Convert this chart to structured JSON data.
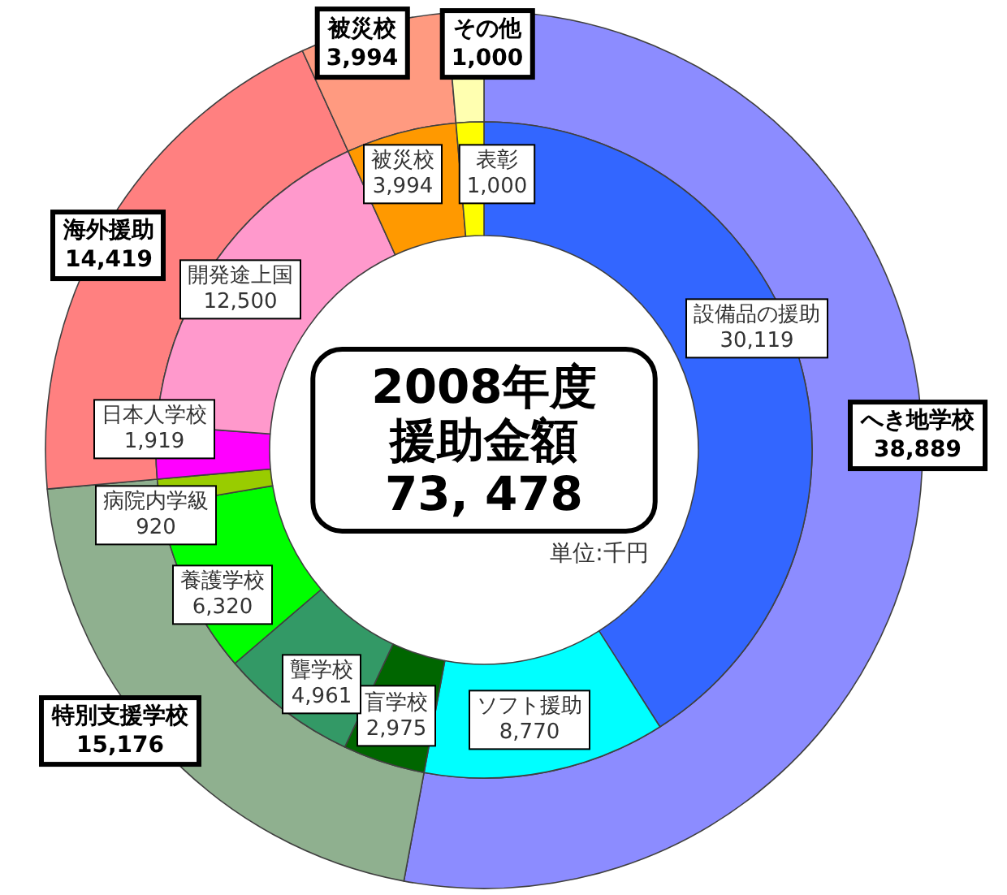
{
  "chart_data": [
    {
      "type": "donut",
      "title": "2008年度援助金額",
      "subtitle": "73, 478",
      "annotations": [
        "単位:千円"
      ],
      "categories": [
        "へき地学校",
        "特別支援学校",
        "海外援助",
        "被災校",
        "その他"
      ],
      "values": [
        38889,
        15176,
        14419,
        3994,
        1000
      ],
      "value_labels": [
        "38,889",
        "15,176",
        "14,419",
        "3,994",
        "1,000"
      ],
      "colors": [
        "#8c8cff",
        "#8fb08f",
        "#ff8080",
        "#ff9a80",
        "#ffffb0"
      ]
    },
    {
      "type": "donut",
      "categories": [
        "設備品の援助",
        "ソフト援助",
        "盲学校",
        "聾学校",
        "養護学校",
        "病院内学級",
        "日本人学校",
        "開発途上国",
        "被災校",
        "表彰"
      ],
      "values": [
        30119,
        8770,
        2975,
        4961,
        6320,
        920,
        1919,
        12500,
        3994,
        1000
      ],
      "value_labels": [
        "30,119",
        "8,770",
        "2,975",
        "4,961",
        "6,320",
        "920",
        "1,919",
        "12,500",
        "3,994",
        "1,000"
      ],
      "colors": [
        "#3366ff",
        "#00ffff",
        "#006600",
        "#339966",
        "#00ff00",
        "#99cc00",
        "#ff00ff",
        "#ff99cc",
        "#ff9900",
        "#ffff00"
      ]
    }
  ]
}
